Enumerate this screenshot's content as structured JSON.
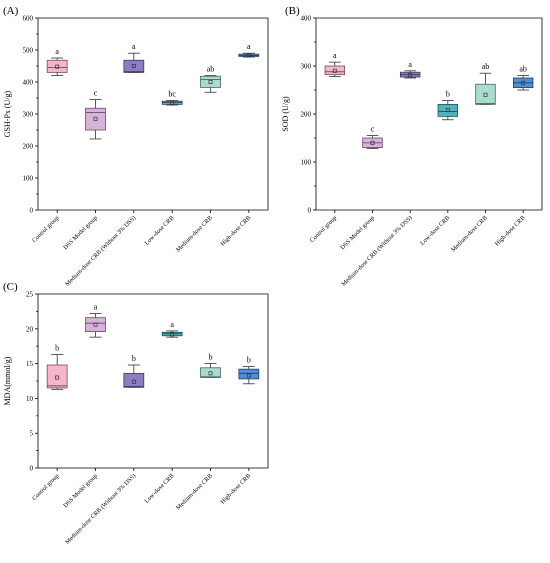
{
  "chart_data": [
    {
      "type": "box",
      "panel_label": "(A)",
      "ylabel": "GSH-Px (U/g)",
      "ylim": [
        0,
        600
      ],
      "yticks": [
        0,
        100,
        200,
        300,
        400,
        500,
        600
      ],
      "categories": [
        "Control group",
        "DSS Model group",
        "Medium-dose CRB (Without 3% DSS)",
        "Low-dose CRB",
        "Medium-dose CRB",
        "High-dose CRB"
      ],
      "colors": [
        "#f4b6c8",
        "#d7b3d9",
        "#8e7cc3",
        "#4fb3bf",
        "#a9dcd0",
        "#4f8fd6"
      ],
      "boxes": [
        {
          "whisker_low": 420,
          "q1": 430,
          "median": 445,
          "q3": 468,
          "whisker_high": 475,
          "mean": 448,
          "letter": "a"
        },
        {
          "whisker_low": 222,
          "q1": 250,
          "median": 305,
          "q3": 318,
          "whisker_high": 345,
          "mean": 285,
          "letter": "c"
        },
        {
          "whisker_low": 430,
          "q1": 430,
          "median": 432,
          "q3": 468,
          "whisker_high": 490,
          "mean": 450,
          "letter": "a"
        },
        {
          "whisker_low": 328,
          "q1": 330,
          "median": 336,
          "q3": 340,
          "whisker_high": 342,
          "mean": 335,
          "letter": "bc"
        },
        {
          "whisker_low": 368,
          "q1": 383,
          "median": 408,
          "q3": 418,
          "whisker_high": 420,
          "mean": 400,
          "letter": "ab"
        },
        {
          "whisker_low": 478,
          "q1": 480,
          "median": 483,
          "q3": 487,
          "whisker_high": 490,
          "mean": 484,
          "letter": "a"
        }
      ]
    },
    {
      "type": "box",
      "panel_label": "(B)",
      "ylabel": "SOD (U/g)",
      "ylim": [
        0,
        400
      ],
      "yticks": [
        0,
        100,
        200,
        300,
        400
      ],
      "categories": [
        "Control group",
        "DSS Model group",
        "Medium-dose CRB (Without 3% DSS)",
        "Low-dose CRB",
        "Medium-dose CRB",
        "High-dose CRB"
      ],
      "colors": [
        "#f4b6c8",
        "#d7b3d9",
        "#8e7cc3",
        "#4fb3bf",
        "#a9dcd0",
        "#4f8fd6"
      ],
      "boxes": [
        {
          "whisker_low": 278,
          "q1": 282,
          "median": 288,
          "q3": 300,
          "whisker_high": 308,
          "mean": 290,
          "letter": "a"
        },
        {
          "whisker_low": 128,
          "q1": 130,
          "median": 140,
          "q3": 150,
          "whisker_high": 155,
          "mean": 140,
          "letter": "c"
        },
        {
          "whisker_low": 275,
          "q1": 277,
          "median": 282,
          "q3": 287,
          "whisker_high": 290,
          "mean": 281,
          "letter": "a"
        },
        {
          "whisker_low": 188,
          "q1": 195,
          "median": 205,
          "q3": 220,
          "whisker_high": 228,
          "mean": 208,
          "letter": "b"
        },
        {
          "whisker_low": 220,
          "q1": 220,
          "median": 222,
          "q3": 262,
          "whisker_high": 285,
          "mean": 240,
          "letter": "ab"
        },
        {
          "whisker_low": 250,
          "q1": 255,
          "median": 265,
          "q3": 275,
          "whisker_high": 280,
          "mean": 265,
          "letter": "ab"
        }
      ]
    },
    {
      "type": "box",
      "panel_label": "(C)",
      "ylabel": "MDA(mmol/g)",
      "ylim": [
        0,
        25
      ],
      "yticks": [
        0,
        5,
        10,
        15,
        20,
        25
      ],
      "categories": [
        "Control group",
        "DSS Model group",
        "Medium-dose CRB (Without 3% DSS)",
        "Low-dose CRB",
        "Medium-dose CRB",
        "High-dose CRB"
      ],
      "colors": [
        "#f4b6c8",
        "#d7b3d9",
        "#8e7cc3",
        "#4fb3bf",
        "#a9dcd0",
        "#4f8fd6"
      ],
      "boxes": [
        {
          "whisker_low": 11.3,
          "q1": 11.5,
          "median": 11.8,
          "q3": 14.8,
          "whisker_high": 16.3,
          "mean": 13.0,
          "letter": "b"
        },
        {
          "whisker_low": 18.8,
          "q1": 19.6,
          "median": 20.8,
          "q3": 21.6,
          "whisker_high": 22.2,
          "mean": 20.6,
          "letter": "a"
        },
        {
          "whisker_low": 11.6,
          "q1": 11.6,
          "median": 11.7,
          "q3": 13.6,
          "whisker_high": 14.8,
          "mean": 12.4,
          "letter": "b"
        },
        {
          "whisker_low": 18.8,
          "q1": 19.0,
          "median": 19.3,
          "q3": 19.5,
          "whisker_high": 19.7,
          "mean": 19.2,
          "letter": "a"
        },
        {
          "whisker_low": 13.0,
          "q1": 13.0,
          "median": 13.1,
          "q3": 14.4,
          "whisker_high": 15.0,
          "mean": 13.6,
          "letter": "b"
        },
        {
          "whisker_low": 12.1,
          "q1": 12.8,
          "median": 13.6,
          "q3": 14.2,
          "whisker_high": 14.6,
          "mean": 13.3,
          "letter": "b"
        }
      ]
    }
  ]
}
